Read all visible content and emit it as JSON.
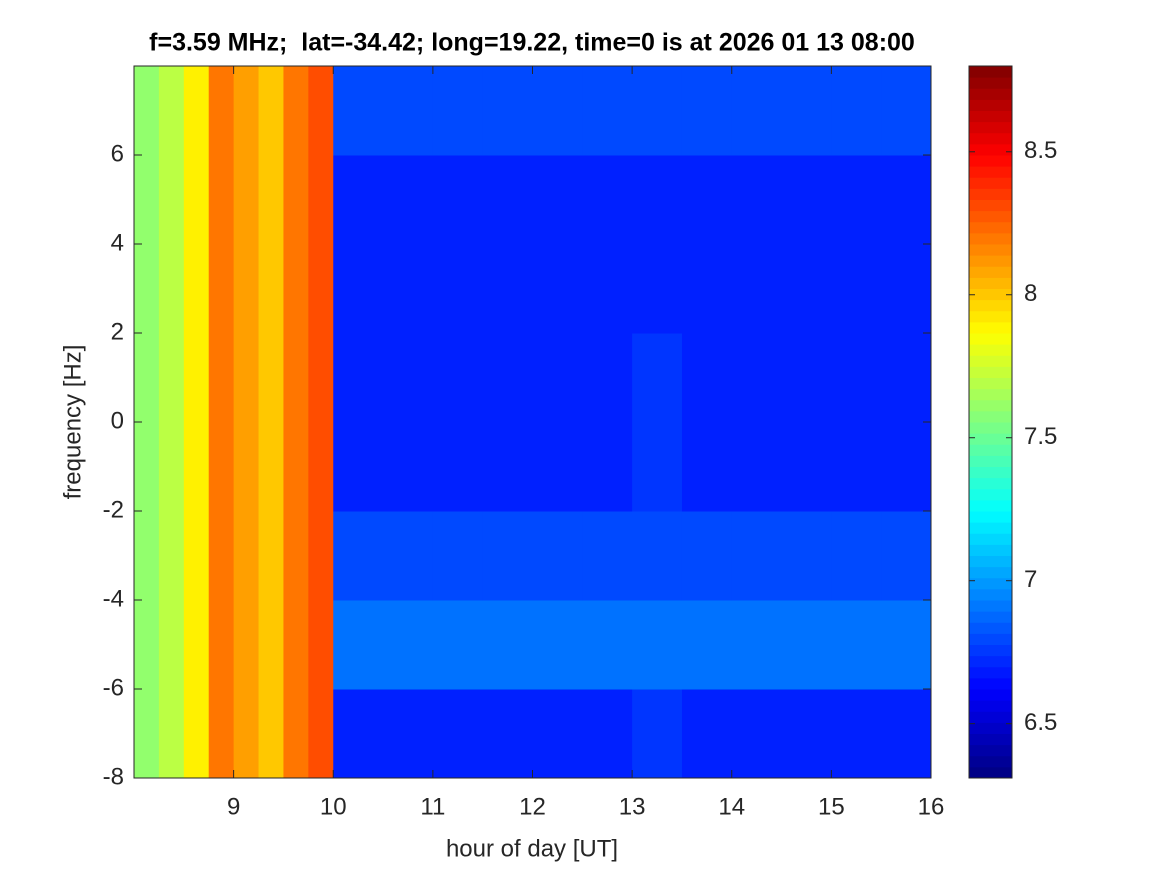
{
  "chart_data": {
    "type": "heatmap",
    "title": "f=3.59 MHz;  lat=-34.42; long=19.22, time=0 is at 2026 01 13 08:00",
    "x_label": "hour of day [UT]",
    "y_label": "frequency [Hz]",
    "colormap": "jet",
    "xlim": [
      8,
      16
    ],
    "ylim": [
      -8,
      8
    ],
    "clim": [
      6.31,
      8.8
    ],
    "xticks": [
      9,
      10,
      11,
      12,
      13,
      14,
      15,
      16
    ],
    "yticks": [
      -8,
      -6,
      -4,
      -2,
      0,
      2,
      4,
      6
    ],
    "cticks": [
      6.5,
      7,
      7.5,
      8,
      8.5
    ],
    "xbins": [
      8,
      8.25,
      8.5,
      8.75,
      9,
      9.25,
      9.5,
      9.75,
      10,
      10.5,
      11,
      11.5,
      12,
      12.5,
      13,
      13.5,
      14,
      14.5,
      15,
      15.5,
      16
    ],
    "ybins": [
      -8,
      -6,
      -4,
      -2,
      0,
      2,
      4,
      6,
      8
    ],
    "z": [
      [
        7.6,
        7.7,
        7.9,
        8.2,
        8.1,
        8.0,
        8.2,
        8.3,
        6.7,
        6.7,
        6.7,
        6.7,
        6.7,
        6.7,
        6.75,
        6.7,
        6.7,
        6.7,
        6.7,
        6.7
      ],
      [
        7.6,
        7.7,
        7.9,
        8.2,
        8.1,
        8.0,
        8.2,
        8.3,
        6.9,
        6.9,
        6.9,
        6.9,
        6.9,
        6.9,
        6.9,
        6.9,
        6.9,
        6.9,
        6.9,
        6.9
      ],
      [
        7.6,
        7.7,
        7.9,
        8.2,
        8.1,
        8.0,
        8.2,
        8.3,
        6.8,
        6.8,
        6.8,
        6.8,
        6.8,
        6.8,
        6.8,
        6.8,
        6.8,
        6.8,
        6.8,
        6.8
      ],
      [
        7.6,
        7.7,
        7.9,
        8.2,
        8.1,
        8.0,
        8.2,
        8.3,
        6.7,
        6.7,
        6.7,
        6.7,
        6.7,
        6.7,
        6.75,
        6.7,
        6.7,
        6.7,
        6.7,
        6.7
      ],
      [
        7.6,
        7.7,
        7.9,
        8.2,
        8.1,
        8.0,
        8.2,
        8.3,
        6.7,
        6.7,
        6.7,
        6.7,
        6.7,
        6.7,
        6.75,
        6.7,
        6.7,
        6.7,
        6.7,
        6.7
      ],
      [
        7.6,
        7.7,
        7.9,
        8.2,
        8.1,
        8.0,
        8.2,
        8.3,
        6.7,
        6.7,
        6.7,
        6.7,
        6.7,
        6.7,
        6.7,
        6.7,
        6.7,
        6.7,
        6.7,
        6.7
      ],
      [
        7.6,
        7.7,
        7.9,
        8.2,
        8.1,
        8.0,
        8.2,
        8.3,
        6.7,
        6.7,
        6.7,
        6.7,
        6.7,
        6.7,
        6.7,
        6.7,
        6.7,
        6.7,
        6.7,
        6.7
      ],
      [
        7.6,
        7.7,
        7.9,
        8.2,
        8.1,
        8.0,
        8.2,
        8.3,
        6.8,
        6.8,
        6.8,
        6.8,
        6.8,
        6.8,
        6.8,
        6.8,
        6.8,
        6.8,
        6.8,
        6.8
      ]
    ]
  }
}
